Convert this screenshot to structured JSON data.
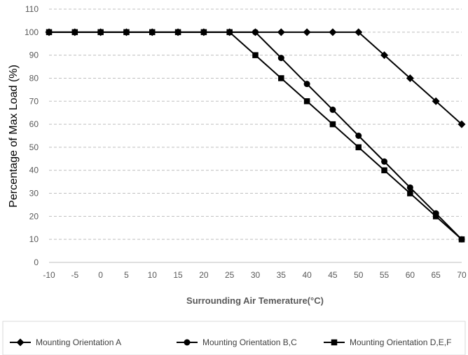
{
  "chart_data": {
    "type": "line",
    "title": "",
    "xlabel": "Surrounding Air Temerature(°C)",
    "ylabel": "Percentage of Max Load (%)",
    "x": [
      -10,
      -5,
      0,
      5,
      10,
      15,
      20,
      25,
      30,
      35,
      40,
      45,
      50,
      55,
      60,
      65,
      70
    ],
    "x_ticks": [
      "-10",
      "-5",
      "0",
      "5",
      "10",
      "15",
      "20",
      "25",
      "30",
      "35",
      "40",
      "45",
      "50",
      "55",
      "60",
      "65",
      "70"
    ],
    "y_ticks": [
      "0",
      "10",
      "20",
      "30",
      "40",
      "50",
      "60",
      "70",
      "80",
      "90",
      "100",
      "110"
    ],
    "ylim": [
      0,
      110
    ],
    "grid": "horizontal dashed",
    "legend_position": "bottom",
    "series": [
      {
        "name": "Mounting Orientation A",
        "marker": "diamond",
        "values": [
          100,
          100,
          100,
          100,
          100,
          100,
          100,
          100,
          100,
          100,
          100,
          100,
          100,
          90,
          80,
          70,
          60
        ]
      },
      {
        "name": "Mounting Orientation B,C",
        "marker": "circle",
        "values": [
          100,
          100,
          100,
          100,
          100,
          100,
          100,
          100,
          100,
          88.8,
          77.5,
          66.3,
          55,
          43.8,
          32.5,
          21.3,
          10
        ]
      },
      {
        "name": "Mounting Orientation D,E,F",
        "marker": "square",
        "values": [
          100,
          100,
          100,
          100,
          100,
          100,
          100,
          100,
          90,
          80,
          70,
          60,
          50,
          40,
          30,
          20,
          10
        ]
      }
    ],
    "line_color": "#000000",
    "grid_color": "#bfbfbf",
    "axis_text_color": "#595959"
  }
}
